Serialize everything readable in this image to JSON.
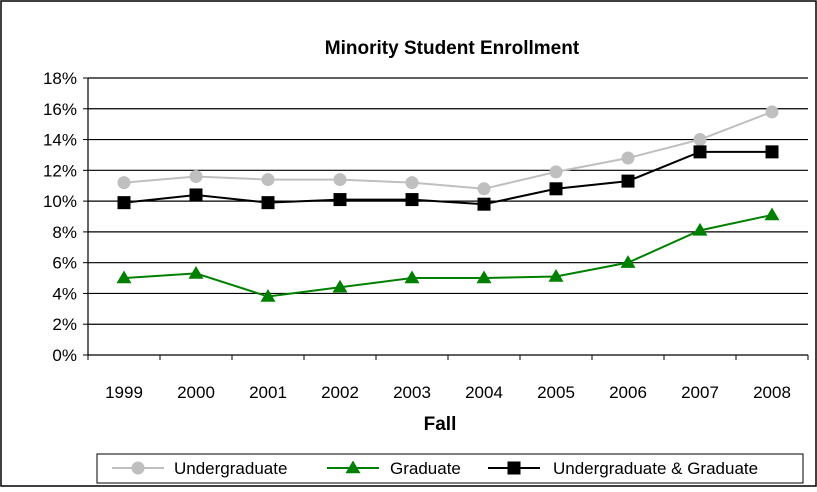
{
  "chart_data": {
    "type": "line",
    "title": "Minority Student Enrollment",
    "xlabel": "Fall",
    "ylabel": "",
    "categories": [
      "1999",
      "2000",
      "2001",
      "2002",
      "2003",
      "2004",
      "2005",
      "2006",
      "2007",
      "2008"
    ],
    "ylim": [
      0,
      18
    ],
    "yticks": [
      "0%",
      "2%",
      "4%",
      "6%",
      "8%",
      "10%",
      "12%",
      "14%",
      "16%",
      "18%"
    ],
    "grid": true,
    "legend_position": "bottom",
    "series": [
      {
        "name": "Undergraduate",
        "values": [
          11.2,
          11.6,
          11.4,
          11.4,
          11.2,
          10.8,
          11.9,
          12.8,
          14.0,
          15.8
        ],
        "color": "#bfbfbf",
        "marker": "circle"
      },
      {
        "name": "Graduate",
        "values": [
          5.0,
          5.3,
          3.8,
          4.4,
          5.0,
          5.0,
          5.1,
          6.0,
          8.1,
          9.1
        ],
        "color": "#008000",
        "marker": "triangle"
      },
      {
        "name": "Undergraduate & Graduate",
        "values": [
          9.9,
          10.4,
          9.9,
          10.1,
          10.1,
          9.8,
          10.8,
          11.3,
          13.2,
          13.2
        ],
        "color": "#000000",
        "marker": "square"
      }
    ]
  }
}
